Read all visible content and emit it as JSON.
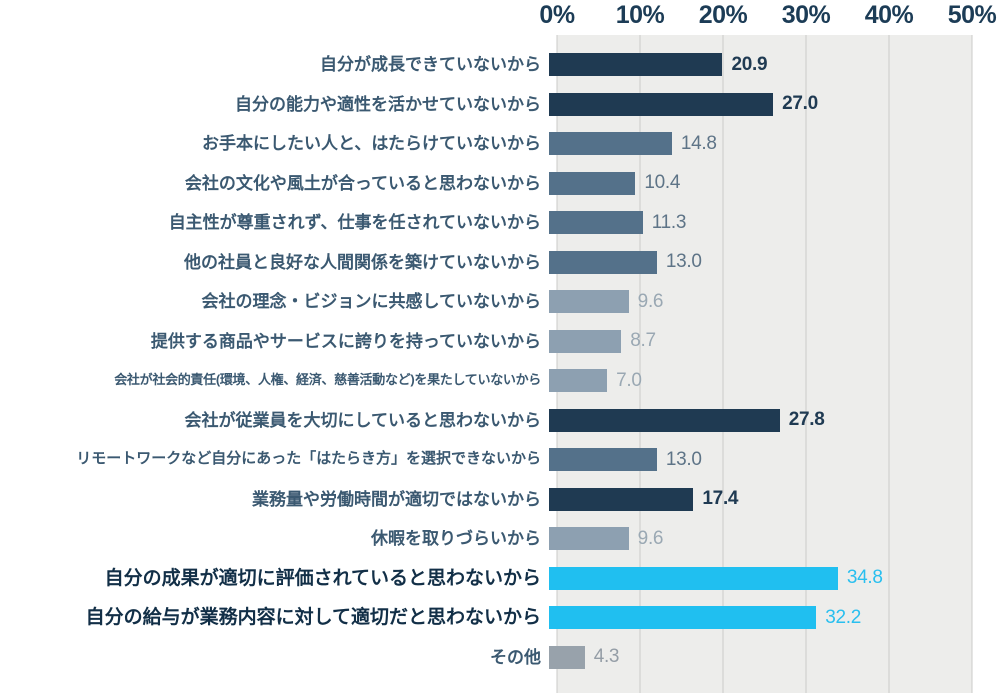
{
  "chart_data": {
    "type": "bar",
    "orientation": "horizontal",
    "title": "",
    "xlabel": "",
    "ylabel": "",
    "xlim": [
      0,
      50
    ],
    "x_ticks": [
      "0%",
      "10%",
      "20%",
      "30%",
      "40%",
      "50%"
    ],
    "grid": true,
    "legend": false,
    "categories": [
      "自分が成長できていないから",
      "自分の能力や適性を活かせていないから",
      "お手本にしたい人と、はたらけていないから",
      "会社の文化や風土が合っていると思わないから",
      "自主性が尊重されず、仕事を任されていないから",
      "他の社員と良好な人間関係を築けていないから",
      "会社の理念・ビジョンに共感していないから",
      "提供する商品やサービスに誇りを持っていないから",
      "会社が社会的責任(環境、人権、経済、慈善活動など)を果たしていないから",
      "会社が従業員を大切にしていると思わないから",
      "リモートワークなど自分にあった「はたらき方」を選択できないから",
      "業務量や労働時間が適切ではないから",
      "休暇を取りづらいから",
      "自分の成果が適切に評価されていると思わないから",
      "自分の給与が業務内容に対して適切だと思わないから",
      "その他"
    ],
    "values": [
      20.9,
      27.0,
      14.8,
      10.4,
      11.3,
      13.0,
      9.6,
      8.7,
      7.0,
      27.8,
      13.0,
      17.4,
      9.6,
      34.8,
      32.2,
      4.3
    ],
    "tones": [
      "dark",
      "dark",
      "medium",
      "medium",
      "medium",
      "medium",
      "light",
      "light",
      "light",
      "dark",
      "medium",
      "dark",
      "light",
      "cyan",
      "cyan",
      "gray"
    ],
    "label_styles": [
      "normal",
      "normal",
      "normal",
      "normal",
      "normal",
      "normal",
      "normal",
      "normal",
      "xsmall",
      "normal",
      "small",
      "normal",
      "normal",
      "bold",
      "bold",
      "normal"
    ],
    "palette": {
      "dark": {
        "bar": "#1F3A52",
        "value": "#1F3A52"
      },
      "medium": {
        "bar": "#54718A",
        "value": "#5E7487"
      },
      "light": {
        "bar": "#8DA0B1",
        "value": "#9AA8B3"
      },
      "cyan": {
        "bar": "#20BFF0",
        "value": "#29BFEF"
      },
      "gray": {
        "bar": "#98A2AB",
        "value": "#949DA6"
      }
    },
    "plot_background": "#EDEDEB",
    "gridline_color": "#CBCBC9",
    "axis_label_color": "#1C3C56"
  }
}
